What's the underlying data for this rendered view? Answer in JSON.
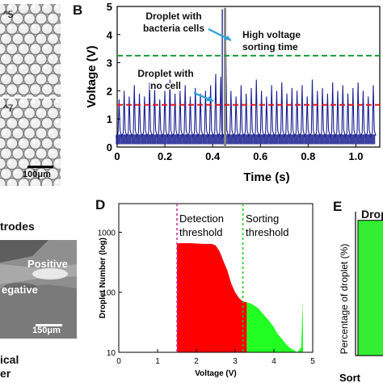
{
  "panel_A": {
    "image1_label": "^5",
    "image2_label": "^7",
    "scale_bar": "100μm"
  },
  "panel_B": {
    "letter": "B",
    "annotations": {
      "bacteria_droplet": [
        "Droplet with",
        "bacteria cells"
      ],
      "sorting_time": [
        "High voltage",
        "sorting time"
      ],
      "no_cell_droplet": [
        "Droplet with",
        "no cell"
      ]
    },
    "colors": {
      "signal": "#1a1f8f",
      "sorting_threshold": "#1a9a3a",
      "detection_threshold": "#e01b1b",
      "sorting_bar": "#8a8a8a",
      "arrow": "#2aa0d8"
    }
  },
  "panel_C": {
    "labels": {
      "electrodes": "trodes",
      "positive": "Positive",
      "negative": "egative",
      "scale_bar": "150μm",
      "bottom1": "ical",
      "bottom2": "er"
    }
  },
  "panel_D": {
    "letter": "D",
    "annotations": {
      "detection": [
        "Detection",
        "threshold"
      ],
      "sorting": [
        "Sorting",
        "threshold"
      ]
    },
    "colors": {
      "below_sorting": "#ff0000",
      "above_sorting": "#22ff22",
      "detection_line": "#cc33aa",
      "sorting_line": "#22cc22"
    }
  },
  "panel_E": {
    "letter": "E",
    "title_partial": "Drop",
    "ylabel": "Percentage of droplet (%)",
    "xlabel_partial": "Sort",
    "bar_color": "#33ee33"
  },
  "chart_data": [
    {
      "type": "line",
      "panel": "B",
      "xlabel": "Time (s)",
      "ylabel": "Voltage (V)",
      "xlim": [
        0,
        1.1
      ],
      "ylim": [
        0,
        5
      ],
      "x_ticks": [
        "0",
        "0.2",
        "0.4",
        "0.6",
        "0.8",
        "1.0"
      ],
      "y_ticks": [
        "0",
        "1",
        "2",
        "3",
        "4",
        "5"
      ],
      "peak_period_s": 0.0213,
      "baseline_v": 0.3,
      "peak_heights_v": [
        1.7,
        2.0,
        1.8,
        2.2,
        1.9,
        1.8,
        2.3,
        2.1,
        1.7,
        2.0,
        2.4,
        1.9,
        2.0,
        2.2,
        1.8,
        2.1,
        1.9,
        2.0,
        2.2,
        2.6,
        2.5,
        3.5,
        2.0,
        1.8,
        2.2,
        1.9,
        2.1,
        2.4,
        2.0,
        1.8,
        2.2,
        2.0,
        2.3,
        1.9,
        2.1,
        2.0,
        2.2,
        1.8,
        2.4,
        2.0,
        2.1,
        1.9,
        2.3,
        2.0,
        2.2,
        1.9,
        2.1,
        2.3,
        2.0,
        1.8,
        2.2
      ],
      "bacteria_peak_height_v": 4.9,
      "sorting_threshold_v": 3.25,
      "detection_threshold_v": 1.5,
      "sorting_window_s": [
        0.447,
        0.457
      ]
    },
    {
      "type": "area",
      "panel": "D",
      "scale": "log",
      "xlabel": "Voltage (V)",
      "ylabel": "Droplet Number (log)",
      "xlim": [
        0,
        5
      ],
      "ylim": [
        10,
        3000
      ],
      "x_ticks": [
        "0",
        "1",
        "2",
        "3",
        "4",
        "5"
      ],
      "y_ticks": [
        "10",
        "100",
        "1000"
      ],
      "detection_threshold_v": 1.5,
      "sorting_threshold_v": 3.2,
      "histogram": {
        "x": [
          1.5,
          1.6,
          1.8,
          2.0,
          2.2,
          2.4,
          2.5,
          2.6,
          2.7,
          2.8,
          2.9,
          3.0,
          3.1,
          3.2,
          3.3,
          3.4,
          3.5,
          3.6,
          3.7,
          3.8,
          3.9,
          4.0,
          4.1,
          4.2,
          4.3,
          4.4,
          4.5,
          4.6,
          4.7,
          4.75
        ],
        "y": [
          650,
          660,
          660,
          650,
          640,
          640,
          600,
          480,
          330,
          230,
          140,
          100,
          80,
          70,
          68,
          65,
          60,
          54,
          45,
          38,
          32,
          26,
          20,
          17,
          14,
          12,
          11,
          10,
          12,
          70
        ]
      }
    },
    {
      "type": "bar",
      "panel": "E",
      "ylabel": "Percentage of droplet (%)",
      "values_pct": [
        94
      ]
    }
  ]
}
